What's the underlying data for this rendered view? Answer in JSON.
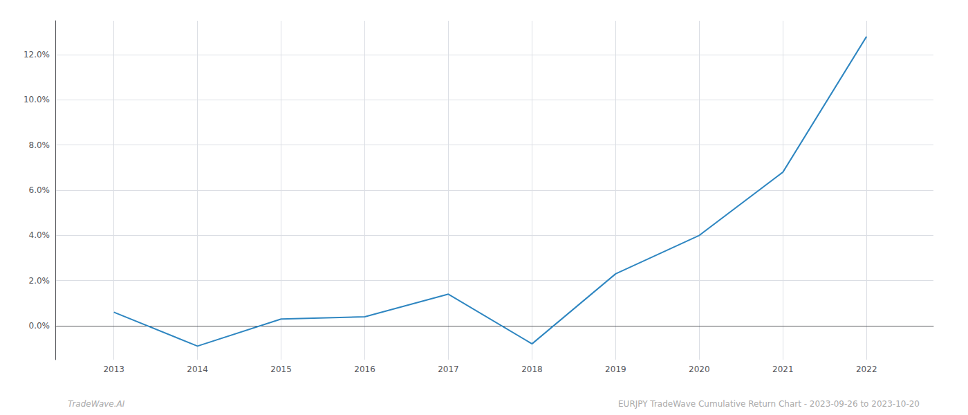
{
  "chart_data": {
    "type": "line",
    "x": [
      2013,
      2014,
      2015,
      2016,
      2017,
      2018,
      2019,
      2020,
      2021,
      2022
    ],
    "values": [
      0.006,
      -0.009,
      0.003,
      0.004,
      0.014,
      -0.008,
      0.023,
      0.04,
      0.068,
      0.128
    ],
    "color": "#2e86c1",
    "xlim": [
      2012.3,
      2022.8
    ],
    "xticks": [
      2013,
      2014,
      2015,
      2016,
      2017,
      2018,
      2019,
      2020,
      2021,
      2022
    ],
    "ylim": [
      -0.015,
      0.135
    ],
    "yticks": [
      {
        "value": 0.0,
        "label": "0.0%"
      },
      {
        "value": 0.02,
        "label": "2.0%"
      },
      {
        "value": 0.04,
        "label": "4.0%"
      },
      {
        "value": 0.06,
        "label": "6.0%"
      },
      {
        "value": 0.08,
        "label": "8.0%"
      },
      {
        "value": 0.1,
        "label": "10.0%"
      },
      {
        "value": 0.12,
        "label": "12.0%"
      }
    ],
    "grid": true,
    "annotations": [
      "TradeWave.AI",
      "EURJPY TradeWave Cumulative Return Chart - 2023-09-26 to 2023-10-20"
    ]
  }
}
